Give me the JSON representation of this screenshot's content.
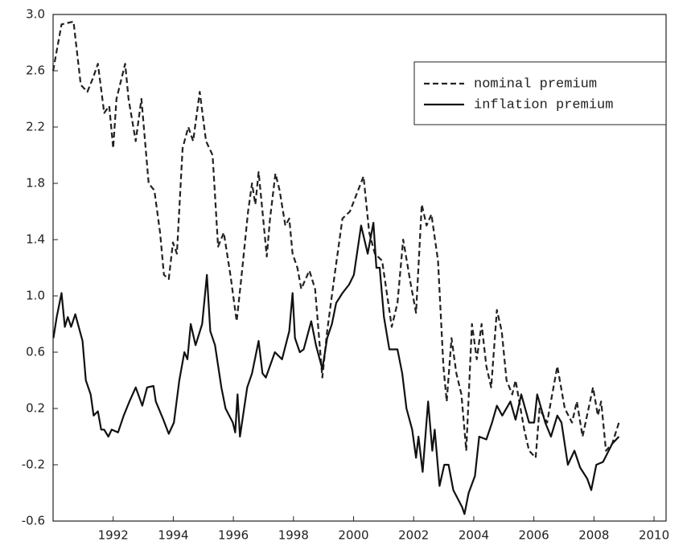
{
  "chart_data": {
    "type": "line",
    "xlim": [
      1990,
      2010.4
    ],
    "xticks": [
      1992,
      1994,
      1996,
      1998,
      2000,
      2002,
      2004,
      2006,
      2008,
      2010
    ],
    "ylim": [
      -0.6,
      3.0
    ],
    "yticks": [
      -0.6,
      -0.2,
      0.2,
      0.6,
      {
        "value": 1,
        "label": "1.0"
      },
      1.4,
      1.8,
      2.2,
      2.6,
      {
        "value": 3,
        "label": "3.0"
      }
    ],
    "grid": false,
    "legend": "upper right",
    "series": [
      {
        "name": "nominal premium",
        "color": "#222222",
        "dash": true,
        "x": [
          1990.0,
          1990.28,
          1990.68,
          1990.92,
          1991.14,
          1991.33,
          1991.49,
          1991.7,
          1991.87,
          1992.0,
          1992.11,
          1992.4,
          1992.51,
          1992.75,
          1992.94,
          1993.18,
          1993.37,
          1993.56,
          1993.69,
          1993.85,
          1993.99,
          1994.12,
          1994.31,
          1994.5,
          1994.66,
          1994.88,
          1995.09,
          1995.31,
          1995.49,
          1995.68,
          1995.9,
          1996.11,
          1996.25,
          1996.49,
          1996.62,
          1996.73,
          1996.84,
          1996.97,
          1997.11,
          1997.22,
          1997.4,
          1997.54,
          1997.73,
          1997.86,
          1997.97,
          1998.13,
          1998.26,
          1998.53,
          1998.72,
          1998.96,
          1999.12,
          1999.37,
          1999.63,
          1999.88,
          2000.33,
          2000.52,
          2000.71,
          2000.95,
          2001.27,
          2001.46,
          2001.65,
          2001.89,
          2002.08,
          2002.27,
          2002.43,
          2002.59,
          2002.81,
          2002.99,
          2003.1,
          2003.26,
          2003.42,
          2003.59,
          2003.75,
          2003.94,
          2004.1,
          2004.26,
          2004.42,
          2004.58,
          2004.77,
          2004.93,
          2005.09,
          2005.28,
          2005.39,
          2005.68,
          2005.84,
          2006.06,
          2006.19,
          2006.44,
          2006.78,
          2007.03,
          2007.27,
          2007.43,
          2007.62,
          2007.97,
          2008.13,
          2008.24,
          2008.4,
          2008.61,
          2008.83
        ],
        "values": [
          2.6,
          2.93,
          2.95,
          2.5,
          2.45,
          2.55,
          2.65,
          2.3,
          2.35,
          2.05,
          2.4,
          2.65,
          2.4,
          2.1,
          2.4,
          1.8,
          1.75,
          1.45,
          1.15,
          1.12,
          1.38,
          1.3,
          2.05,
          2.2,
          2.1,
          2.45,
          2.1,
          2.0,
          1.35,
          1.45,
          1.15,
          0.82,
          1.1,
          1.6,
          1.8,
          1.65,
          1.88,
          1.6,
          1.28,
          1.55,
          1.87,
          1.75,
          1.5,
          1.55,
          1.3,
          1.2,
          1.05,
          1.18,
          1.05,
          0.42,
          0.75,
          1.15,
          1.55,
          1.6,
          1.85,
          1.45,
          1.3,
          1.25,
          0.78,
          0.95,
          1.4,
          1.1,
          0.88,
          1.65,
          1.5,
          1.58,
          1.25,
          0.5,
          0.25,
          0.7,
          0.45,
          0.3,
          -0.1,
          0.8,
          0.55,
          0.8,
          0.5,
          0.35,
          0.9,
          0.75,
          0.4,
          0.3,
          0.4,
          0.05,
          -0.1,
          -0.15,
          0.2,
          0.1,
          0.5,
          0.2,
          0.1,
          0.25,
          0.0,
          0.35,
          0.15,
          0.25,
          -0.1,
          -0.05,
          0.1
        ]
      },
      {
        "name": "inflation premium",
        "color": "#111111",
        "dash": false,
        "x": [
          1990.01,
          1990.12,
          1990.28,
          1990.39,
          1990.49,
          1990.6,
          1990.74,
          1990.98,
          1991.09,
          1991.25,
          1991.35,
          1991.49,
          1991.6,
          1991.7,
          1991.84,
          1991.95,
          1992.16,
          1992.35,
          1992.54,
          1992.75,
          1992.97,
          1993.13,
          1993.34,
          1993.42,
          1993.67,
          1993.85,
          1994.02,
          1994.2,
          1994.37,
          1994.47,
          1994.58,
          1994.74,
          1994.96,
          1995.12,
          1995.23,
          1995.39,
          1995.6,
          1995.74,
          1995.98,
          1996.06,
          1996.14,
          1996.22,
          1996.46,
          1996.62,
          1996.84,
          1996.97,
          1997.08,
          1997.38,
          1997.62,
          1997.86,
          1997.97,
          1998.05,
          1998.21,
          1998.34,
          1998.59,
          1998.75,
          1998.96,
          1999.12,
          1999.28,
          1999.42,
          1999.63,
          1999.85,
          2000.01,
          2000.25,
          2000.47,
          2000.66,
          2000.76,
          2000.87,
          2001.01,
          2001.19,
          2001.46,
          2001.62,
          2001.76,
          2001.95,
          2002.08,
          2002.16,
          2002.3,
          2002.48,
          2002.62,
          2002.7,
          2002.86,
          2003.02,
          2003.16,
          2003.32,
          2003.61,
          2003.69,
          2003.83,
          2004.04,
          2004.18,
          2004.42,
          2004.61,
          2004.77,
          2004.95,
          2005.22,
          2005.39,
          2005.58,
          2005.84,
          2006.01,
          2006.11,
          2006.38,
          2006.57,
          2006.78,
          2006.92,
          2007.13,
          2007.35,
          2007.54,
          2007.78,
          2007.91,
          2008.08,
          2008.3,
          2008.61,
          2008.83
        ],
        "values": [
          0.7,
          0.85,
          1.02,
          0.78,
          0.85,
          0.78,
          0.87,
          0.68,
          0.4,
          0.3,
          0.15,
          0.18,
          0.05,
          0.05,
          0.0,
          0.05,
          0.03,
          0.15,
          0.25,
          0.35,
          0.22,
          0.35,
          0.36,
          0.25,
          0.12,
          0.02,
          0.1,
          0.4,
          0.6,
          0.55,
          0.8,
          0.65,
          0.8,
          1.15,
          0.75,
          0.65,
          0.35,
          0.2,
          0.1,
          0.03,
          0.3,
          0.0,
          0.35,
          0.45,
          0.68,
          0.45,
          0.42,
          0.6,
          0.55,
          0.75,
          1.02,
          0.7,
          0.6,
          0.62,
          0.82,
          0.65,
          0.48,
          0.7,
          0.8,
          0.95,
          1.02,
          1.08,
          1.15,
          1.5,
          1.3,
          1.52,
          1.2,
          1.2,
          0.85,
          0.62,
          0.62,
          0.45,
          0.2,
          0.05,
          -0.15,
          0.0,
          -0.25,
          0.25,
          -0.1,
          0.05,
          -0.35,
          -0.2,
          -0.2,
          -0.38,
          -0.5,
          -0.55,
          -0.4,
          -0.28,
          0.0,
          -0.02,
          0.1,
          0.22,
          0.15,
          0.25,
          0.12,
          0.3,
          0.1,
          0.1,
          0.3,
          0.1,
          0.0,
          0.15,
          0.1,
          -0.2,
          -0.1,
          -0.22,
          -0.3,
          -0.38,
          -0.2,
          -0.18,
          -0.05,
          0.0
        ]
      }
    ]
  }
}
